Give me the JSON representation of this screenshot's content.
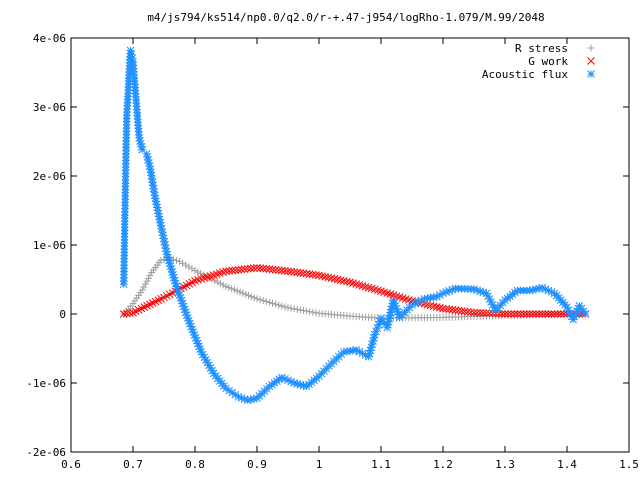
{
  "chart_data": {
    "type": "scatter",
    "title": "m4/js794/ks514/np0.0/q2.0/r-+.47-j954/logRho-1.079/M.99/2048",
    "xlabel": "",
    "ylabel": "",
    "xlim": [
      0.6,
      1.5
    ],
    "ylim": [
      -2e-06,
      4e-06
    ],
    "x_ticks": [
      {
        "value": 0.6,
        "label": "0.6"
      },
      {
        "value": 0.7,
        "label": "0.7"
      },
      {
        "value": 0.8,
        "label": "0.8"
      },
      {
        "value": 0.9,
        "label": "0.9"
      },
      {
        "value": 1.0,
        "label": "1"
      },
      {
        "value": 1.1,
        "label": "1.1"
      },
      {
        "value": 1.2,
        "label": "1.2"
      },
      {
        "value": 1.3,
        "label": "1.3"
      },
      {
        "value": 1.4,
        "label": "1.4"
      },
      {
        "value": 1.5,
        "label": "1.5"
      }
    ],
    "y_ticks": [
      {
        "value": -2e-06,
        "label": "-2e-06"
      },
      {
        "value": -1e-06,
        "label": "-1e-06"
      },
      {
        "value": 0,
        "label": "0"
      },
      {
        "value": 1e-06,
        "label": "1e-06"
      },
      {
        "value": 2e-06,
        "label": "2e-06"
      },
      {
        "value": 3e-06,
        "label": "3e-06"
      },
      {
        "value": 4e-06,
        "label": "4e-06"
      }
    ],
    "grid": false,
    "legend_position": "top-right",
    "series": [
      {
        "name": "R stress",
        "marker": "plus",
        "color": "#a0a0a0",
        "points": [
          [
            0.685,
            0.0
          ],
          [
            0.7,
            1.5e-07
          ],
          [
            0.715,
            3.5e-07
          ],
          [
            0.73,
            6e-07
          ],
          [
            0.745,
            7.8e-07
          ],
          [
            0.76,
            8.1e-07
          ],
          [
            0.775,
            7.6e-07
          ],
          [
            0.8,
            6.3e-07
          ],
          [
            0.85,
            4e-07
          ],
          [
            0.9,
            2.2e-07
          ],
          [
            0.95,
            9e-08
          ],
          [
            1.0,
            1e-08
          ],
          [
            1.05,
            -3e-08
          ],
          [
            1.1,
            -6e-08
          ],
          [
            1.2,
            -5e-08
          ],
          [
            1.3,
            -2e-08
          ],
          [
            1.4,
            0.0
          ],
          [
            1.43,
            0.0
          ]
        ]
      },
      {
        "name": "G work",
        "marker": "cross",
        "color": "#ff0000",
        "points": [
          [
            0.685,
            0.0
          ],
          [
            0.7,
            2e-08
          ],
          [
            0.75,
            2.4e-07
          ],
          [
            0.8,
            4.8e-07
          ],
          [
            0.85,
            6.2e-07
          ],
          [
            0.9,
            6.7e-07
          ],
          [
            0.95,
            6.2e-07
          ],
          [
            1.0,
            5.6e-07
          ],
          [
            1.05,
            4.6e-07
          ],
          [
            1.1,
            3.3e-07
          ],
          [
            1.15,
            1.9e-07
          ],
          [
            1.2,
            8e-08
          ],
          [
            1.25,
            2e-08
          ],
          [
            1.3,
            0.0
          ],
          [
            1.43,
            0.0
          ]
        ]
      },
      {
        "name": "Acoustic flux",
        "marker": "star",
        "color": "#1e90ff",
        "points": [
          [
            0.685,
            4.3e-07
          ],
          [
            0.686,
            9.4e-07
          ],
          [
            0.687,
            1.48e-06
          ],
          [
            0.688,
            1.99e-06
          ],
          [
            0.689,
            2.46e-06
          ],
          [
            0.69,
            2.88e-06
          ],
          [
            0.692,
            3.2e-06
          ],
          [
            0.694,
            3.55e-06
          ],
          [
            0.696,
            3.82e-06
          ],
          [
            0.7,
            3.65e-06
          ],
          [
            0.705,
            3.1e-06
          ],
          [
            0.71,
            2.55e-06
          ],
          [
            0.715,
            2.38e-06
          ],
          [
            0.722,
            2.32e-06
          ],
          [
            0.728,
            2.1e-06
          ],
          [
            0.735,
            1.72e-06
          ],
          [
            0.745,
            1.28e-06
          ],
          [
            0.755,
            8.6e-07
          ],
          [
            0.77,
            4e-07
          ],
          [
            0.79,
            -1e-07
          ],
          [
            0.81,
            -5.5e-07
          ],
          [
            0.83,
            -8.6e-07
          ],
          [
            0.85,
            -1.08e-06
          ],
          [
            0.87,
            -1.2e-06
          ],
          [
            0.885,
            -1.25e-06
          ],
          [
            0.9,
            -1.22e-06
          ],
          [
            0.92,
            -1.05e-06
          ],
          [
            0.94,
            -9.2e-07
          ],
          [
            0.96,
            -1e-06
          ],
          [
            0.98,
            -1.05e-06
          ],
          [
            1.0,
            -9e-07
          ],
          [
            1.02,
            -7.2e-07
          ],
          [
            1.04,
            -5.5e-07
          ],
          [
            1.06,
            -5.2e-07
          ],
          [
            1.08,
            -6.2e-07
          ],
          [
            1.09,
            -3e-07
          ],
          [
            1.1,
            -6e-08
          ],
          [
            1.11,
            -2e-07
          ],
          [
            1.12,
            2e-07
          ],
          [
            1.13,
            -5e-08
          ],
          [
            1.15,
            1.3e-07
          ],
          [
            1.17,
            2.2e-07
          ],
          [
            1.19,
            2.5e-07
          ],
          [
            1.2,
            3e-07
          ],
          [
            1.22,
            3.7e-07
          ],
          [
            1.25,
            3.6e-07
          ],
          [
            1.27,
            3e-07
          ],
          [
            1.285,
            5e-08
          ],
          [
            1.3,
            2e-07
          ],
          [
            1.32,
            3.4e-07
          ],
          [
            1.34,
            3.4e-07
          ],
          [
            1.36,
            3.8e-07
          ],
          [
            1.38,
            3e-07
          ],
          [
            1.4,
            1e-07
          ],
          [
            1.41,
            -8e-08
          ],
          [
            1.42,
            1.2e-07
          ],
          [
            1.43,
            0.0
          ]
        ]
      }
    ]
  }
}
